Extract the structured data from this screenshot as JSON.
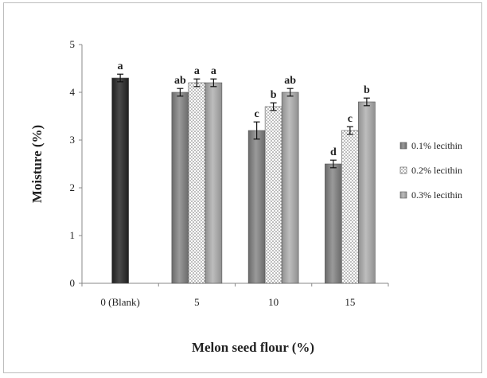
{
  "chart_data": {
    "type": "bar",
    "categories": [
      "0 (Blank)",
      "5",
      "10",
      "15"
    ],
    "xlabel": "Melon seed flour  (%)",
    "ylabel": "Moisture (%)",
    "ylim": [
      0,
      5
    ],
    "yticks": [
      "0",
      "1",
      "2",
      "3",
      "4",
      "5"
    ],
    "grid": false,
    "legend_position": "right",
    "control": {
      "category": "0 (Blank)",
      "value": 4.3,
      "error": 0.08,
      "letter": "a",
      "color": "#2b2b2b"
    },
    "series": [
      {
        "name": "0.1% lecithin",
        "color": "#7f7f7f",
        "pattern": "solid",
        "values": [
          null,
          4.0,
          3.2,
          2.5
        ],
        "errors": [
          null,
          0.08,
          0.18,
          0.08
        ],
        "letters": [
          null,
          "ab",
          "c",
          "d"
        ]
      },
      {
        "name": "0.2% lecithin",
        "color": "#ffffff",
        "pattern": "dotted",
        "values": [
          null,
          4.2,
          3.7,
          3.2
        ],
        "errors": [
          null,
          0.08,
          0.08,
          0.08
        ],
        "letters": [
          null,
          "a",
          "b",
          "c"
        ]
      },
      {
        "name": "0.3% lecithin",
        "color": "#a3a3a3",
        "pattern": "solid",
        "values": [
          null,
          4.2,
          4.0,
          3.8
        ],
        "errors": [
          null,
          0.08,
          0.08,
          0.08
        ],
        "letters": [
          null,
          "a",
          "ab",
          "b"
        ]
      }
    ]
  }
}
